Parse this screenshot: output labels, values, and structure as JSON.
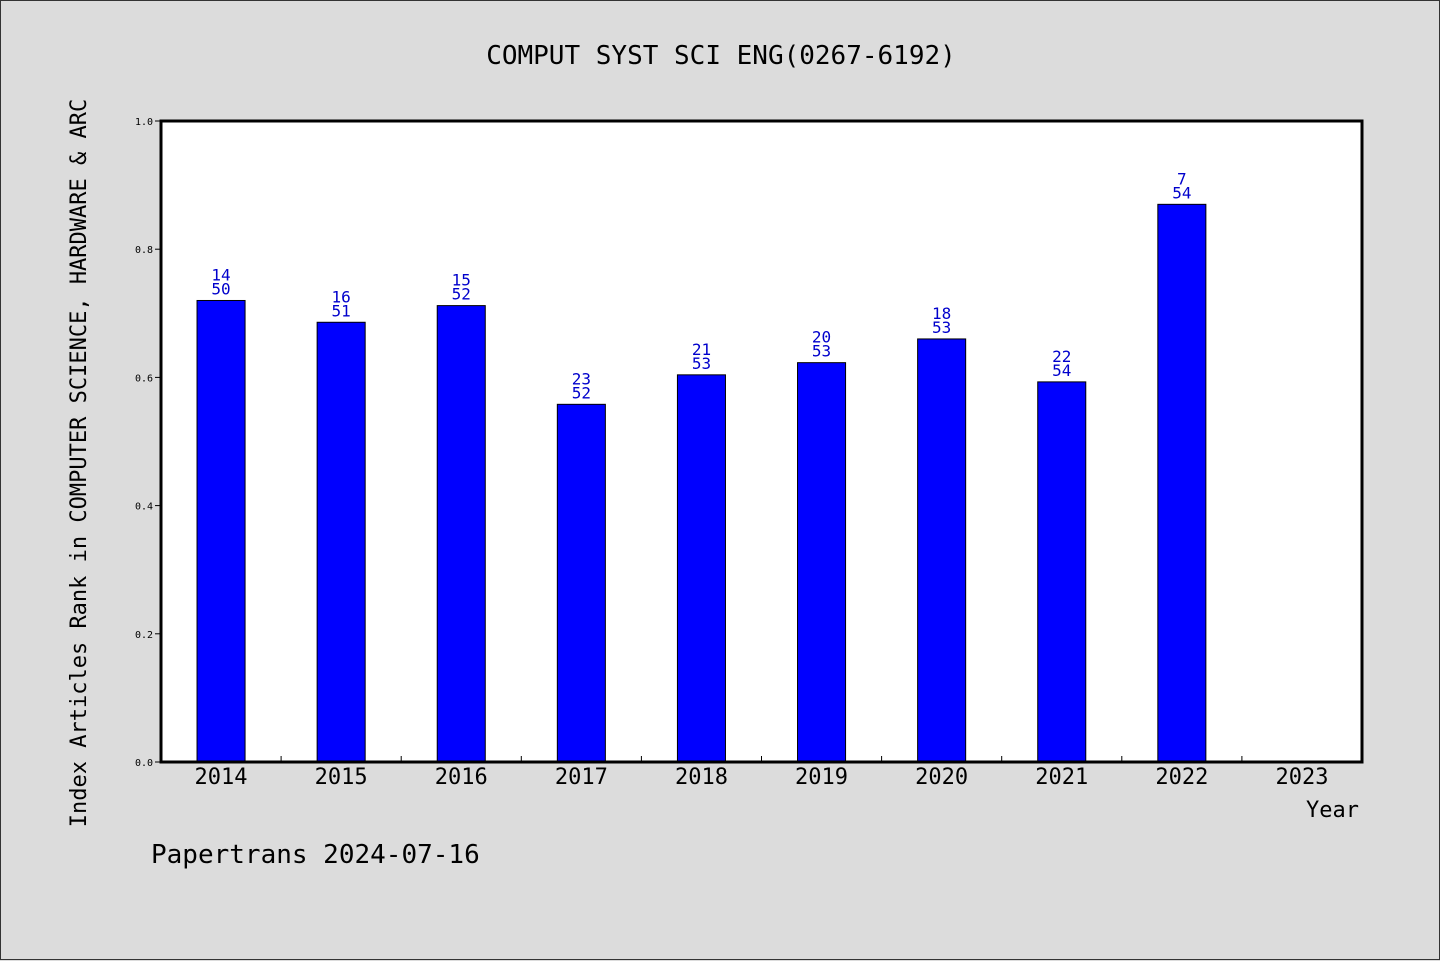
{
  "chart_data": {
    "type": "bar",
    "title": "COMPUT SYST SCI ENG(0267-6192)",
    "xlabel": "Year",
    "ylabel": "Index Articles Rank in COMPUTER SCIENCE, HARDWARE & ARC",
    "ylim": [
      0,
      1.0
    ],
    "yticks": [
      "0.0",
      "0.2",
      "0.4",
      "0.6",
      "0.8",
      "1.0"
    ],
    "categories": [
      "2014",
      "2015",
      "2016",
      "2017",
      "2018",
      "2019",
      "2020",
      "2021",
      "2022",
      "2023"
    ],
    "values": [
      0.72,
      0.686,
      0.712,
      0.558,
      0.604,
      0.623,
      0.66,
      0.593,
      0.87,
      null
    ],
    "rank_labels": [
      "14",
      "16",
      "15",
      "23",
      "21",
      "20",
      "18",
      "22",
      "7",
      ""
    ],
    "total_labels": [
      "50",
      "51",
      "52",
      "52",
      "53",
      "53",
      "53",
      "54",
      "54",
      ""
    ],
    "bar_color": "#0000ff",
    "label_color": "#0000cc",
    "grid": false
  },
  "credit": "Papertrans 2024-07-16"
}
